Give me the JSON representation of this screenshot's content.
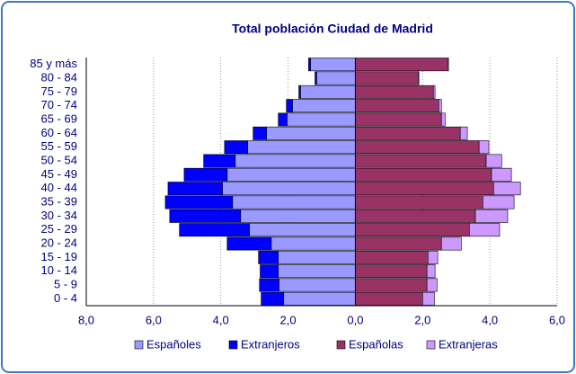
{
  "chart_data": {
    "type": "pyramid",
    "title": "Total población Ciudad de Madrid",
    "categories": [
      "0 - 4",
      "5 - 9",
      "10 - 14",
      "15 - 19",
      "20 - 24",
      "25 - 29",
      "30 - 34",
      "35 - 39",
      "40 - 44",
      "45 - 49",
      "50 - 54",
      "55 - 59",
      "60 - 64",
      "65 - 69",
      "70 - 74",
      "75 - 79",
      "80 - 84",
      "85 y más"
    ],
    "series": [
      {
        "name": "Españoles",
        "color": "#9999ff",
        "values": [
          -2.13,
          -2.27,
          -2.29,
          -2.29,
          -2.5,
          -3.15,
          -3.41,
          -3.65,
          -3.95,
          -3.81,
          -3.57,
          -3.2,
          -2.64,
          -2.03,
          -1.87,
          -1.63,
          -1.15,
          -1.33
        ]
      },
      {
        "name": "Extranjeros",
        "color": "#0000ff",
        "values": [
          -0.67,
          -0.58,
          -0.54,
          -0.59,
          -1.31,
          -2.08,
          -2.11,
          -2.0,
          -1.62,
          -1.28,
          -0.94,
          -0.69,
          -0.4,
          -0.26,
          -0.18,
          -0.05,
          -0.05,
          -0.06
        ]
      },
      {
        "name": "Españolas",
        "color": "#993366",
        "values": [
          2.0,
          2.13,
          2.13,
          2.16,
          2.56,
          3.39,
          3.57,
          3.79,
          4.11,
          4.05,
          3.89,
          3.68,
          3.12,
          2.56,
          2.48,
          2.32,
          1.87,
          2.75
        ]
      },
      {
        "name": "Extranjeras",
        "color": "#cc99ff",
        "values": [
          0.35,
          0.3,
          0.24,
          0.29,
          0.59,
          0.9,
          0.96,
          0.93,
          0.8,
          0.59,
          0.46,
          0.29,
          0.21,
          0.11,
          0.08,
          0.05,
          0.02,
          0.02
        ]
      }
    ],
    "xlim": [
      -8,
      6
    ],
    "xticks": [
      {
        "value": -8,
        "label": "8,0"
      },
      {
        "value": -6,
        "label": "6,0"
      },
      {
        "value": -4,
        "label": "4,0"
      },
      {
        "value": -2,
        "label": "2,0"
      },
      {
        "value": 0,
        "label": "0,0"
      },
      {
        "value": 2,
        "label": "2,0"
      },
      {
        "value": 4,
        "label": "4,0"
      },
      {
        "value": 6,
        "label": "6,0"
      }
    ],
    "grid": true,
    "legend": "bottom"
  }
}
